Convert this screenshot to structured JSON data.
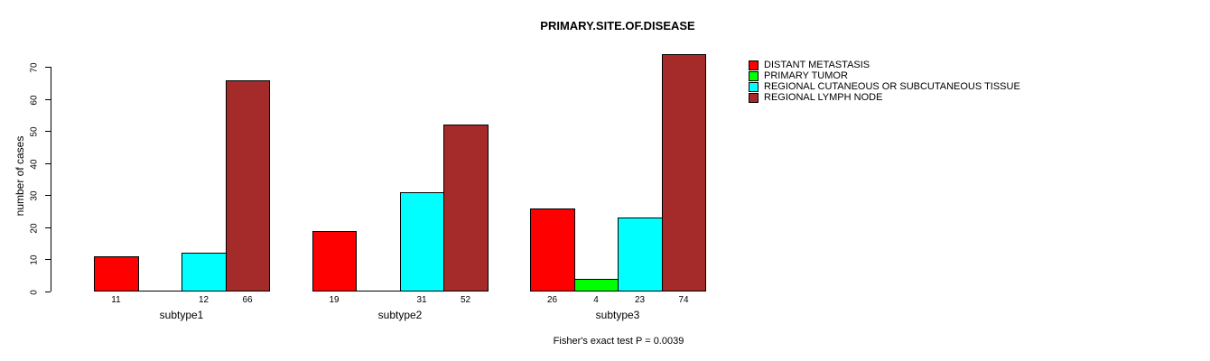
{
  "chart_data": {
    "type": "bar",
    "title": "PRIMARY.SITE.OF.DISEASE",
    "ylabel": "number of cases",
    "xlabel": "",
    "annotation": "Fisher's exact test P = 0.0039",
    "categories": [
      "subtype1",
      "subtype2",
      "subtype3"
    ],
    "series": [
      {
        "name": "DISTANT METASTASIS",
        "color": "#FF0000",
        "values": [
          11,
          19,
          26
        ]
      },
      {
        "name": "PRIMARY TUMOR",
        "color": "#00FF00",
        "values": [
          0,
          0,
          4
        ]
      },
      {
        "name": "REGIONAL CUTANEOUS OR SUBCUTANEOUS TISSUE",
        "color": "#00FFFF",
        "values": [
          12,
          31,
          23
        ]
      },
      {
        "name": "REGIONAL LYMPH NODE",
        "color": "#A52A2A",
        "values": [
          66,
          52,
          74
        ]
      }
    ],
    "yticks": [
      0,
      10,
      20,
      30,
      40,
      50,
      60,
      70
    ],
    "ylim": [
      0,
      74
    ],
    "grid": false,
    "bar_value_labels": true,
    "legend_position": "right",
    "bar_border_color": "#000000"
  }
}
